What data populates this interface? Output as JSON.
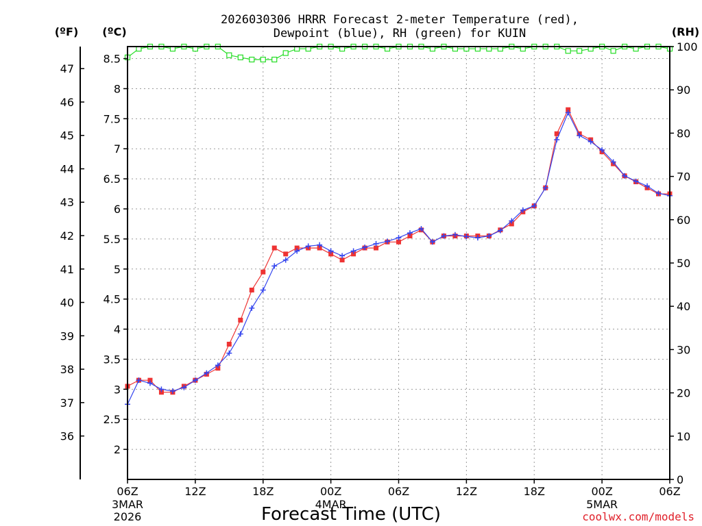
{
  "chart_data": {
    "type": "line",
    "title_line1": "2026030306 HRRR Forecast 2-meter Temperature (red),",
    "title_line2": "Dewpoint (blue), RH (green) for KUIN",
    "xlabel": "Forecast Time (UTC)",
    "credit": "coolwx.com/models",
    "units": {
      "fahrenheit": "(ºF)",
      "celsius": "(ºC)",
      "rh": "(RH)"
    },
    "x_range_hours": [
      0,
      48
    ],
    "x_ticks": [
      {
        "hour": 0,
        "label": "06Z",
        "date_label": "3MAR",
        "year_label": "2026"
      },
      {
        "hour": 6,
        "label": "12Z"
      },
      {
        "hour": 12,
        "label": "18Z"
      },
      {
        "hour": 18,
        "label": "00Z",
        "date_label": "4MAR"
      },
      {
        "hour": 24,
        "label": "06Z"
      },
      {
        "hour": 30,
        "label": "12Z"
      },
      {
        "hour": 36,
        "label": "18Z"
      },
      {
        "hour": 42,
        "label": "00Z",
        "date_label": "5MAR"
      },
      {
        "hour": 48,
        "label": "06Z"
      }
    ],
    "y_celsius": {
      "range": [
        1.5,
        8.7
      ],
      "ticks": [
        "2",
        "2.5",
        "3",
        "3.5",
        "4",
        "4.5",
        "5",
        "5.5",
        "6",
        "6.5",
        "7",
        "7.5",
        "8",
        "8.5"
      ]
    },
    "y_fahrenheit": {
      "ticks": [
        "36",
        "37",
        "38",
        "39",
        "40",
        "41",
        "42",
        "43",
        "44",
        "45",
        "46",
        "47"
      ]
    },
    "y_rh": {
      "range": [
        0,
        100
      ],
      "ticks": [
        "0",
        "10",
        "20",
        "30",
        "40",
        "50",
        "60",
        "70",
        "80",
        "90",
        "100"
      ]
    },
    "x_hours": [
      0,
      1,
      2,
      3,
      4,
      5,
      6,
      7,
      8,
      9,
      10,
      11,
      12,
      13,
      14,
      15,
      16,
      17,
      18,
      19,
      20,
      21,
      22,
      23,
      24,
      25,
      26,
      27,
      28,
      29,
      30,
      31,
      32,
      33,
      34,
      35,
      36,
      37,
      38,
      39,
      40,
      41,
      42,
      43,
      44,
      45,
      46,
      47,
      48
    ],
    "series": [
      {
        "name": "Temperature",
        "color": "#ee3333",
        "marker": "square",
        "values": [
          3.05,
          3.15,
          3.15,
          2.95,
          2.95,
          3.05,
          3.15,
          3.25,
          3.35,
          3.75,
          4.15,
          4.65,
          4.95,
          5.35,
          5.25,
          5.35,
          5.35,
          5.35,
          5.25,
          5.15,
          5.25,
          5.35,
          5.35,
          5.45,
          5.45,
          5.55,
          5.65,
          5.45,
          5.55,
          5.55,
          5.55,
          5.55,
          5.55,
          5.65,
          5.75,
          5.95,
          6.05,
          6.35,
          7.25,
          7.65,
          7.25,
          7.15,
          6.95,
          6.75,
          6.55,
          6.45,
          6.35,
          6.25,
          6.25
        ]
      },
      {
        "name": "Dewpoint",
        "color": "#3344ee",
        "marker": "plus",
        "values": [
          2.75,
          3.15,
          3.1,
          3.0,
          2.97,
          3.03,
          3.15,
          3.27,
          3.4,
          3.6,
          3.92,
          4.35,
          4.65,
          5.05,
          5.15,
          5.3,
          5.38,
          5.4,
          5.3,
          5.22,
          5.3,
          5.36,
          5.42,
          5.46,
          5.52,
          5.6,
          5.67,
          5.45,
          5.55,
          5.57,
          5.54,
          5.52,
          5.55,
          5.64,
          5.8,
          5.98,
          6.05,
          6.35,
          7.15,
          7.6,
          7.22,
          7.12,
          6.98,
          6.78,
          6.55,
          6.46,
          6.38,
          6.26,
          6.22
        ]
      },
      {
        "name": "RH",
        "color": "#22dd22",
        "marker": "square-open",
        "values": [
          97.5,
          99.5,
          100,
          100,
          99.5,
          100,
          99.5,
          100,
          100,
          98,
          97.5,
          97,
          97,
          97,
          98.5,
          99.5,
          99.5,
          100,
          100,
          99.5,
          100,
          100,
          100,
          99.5,
          100,
          100,
          100,
          99.5,
          100,
          99.5,
          99.5,
          99.5,
          99.5,
          99.5,
          100,
          99.5,
          100,
          100,
          100,
          99,
          99,
          99.5,
          100,
          99,
          100,
          99.5,
          100,
          100,
          99.5
        ]
      }
    ]
  }
}
